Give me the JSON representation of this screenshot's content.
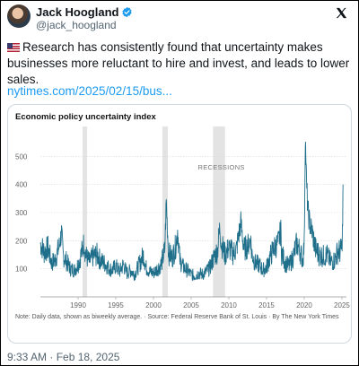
{
  "tweet": {
    "author_name": "Jack Hoogland",
    "author_handle": "@jack_hoogland",
    "text": "Research has consistently found that uncertainty makes businesses more reluctant to hire and invest, and leads to lower sales.",
    "link_text": "nytimes.com/2025/02/15/bus...",
    "timestamp": "9:33 AM · Feb 18, 2025",
    "flag_icon": "us-flag-icon",
    "brand_icon": "x-logo-icon",
    "verified_icon": "verified-badge-icon"
  },
  "chart_data": {
    "type": "line",
    "title": "Economic policy uncertainty index",
    "annotation": "RECESSIONS",
    "note": "Note: Daily data, shown as biweekly average. · Source: Federal Reserve Bank of St. Louis · By The New York Times",
    "xlabel": "",
    "ylabel": "",
    "xlim": [
      1985,
      2025.6
    ],
    "ylim": [
      0,
      600
    ],
    "x_ticks": [
      "1990",
      "1995",
      "2000",
      "2005",
      "2010",
      "2015",
      "2020",
      "2025"
    ],
    "y_ticks": [
      "100",
      "200",
      "300",
      "400",
      "500"
    ],
    "grid": true,
    "line_color": "#1f6f8b",
    "recessions": [
      [
        1990.6,
        1991.2
      ],
      [
        2001.2,
        2001.9
      ],
      [
        2007.9,
        2009.5
      ]
    ],
    "series": [
      {
        "x": [
          1985,
          1985.5,
          1986,
          1986.5,
          1987,
          1987.5,
          1987.8,
          1988,
          1988.5,
          1989,
          1989.5,
          1990,
          1990.5,
          1990.8,
          1991,
          1991.5,
          1992,
          1992.5,
          1993,
          1993.5,
          1994,
          1994.5,
          1995,
          1995.5,
          1996,
          1996.5,
          1997,
          1997.5,
          1998,
          1998.7,
          1999,
          1999.5,
          2000,
          2000.5,
          2001,
          2001.5,
          2001.7,
          2002,
          2002.5,
          2003,
          2003.2,
          2003.5,
          2004,
          2004.5,
          2005,
          2005.5,
          2006,
          2006.5,
          2007,
          2007.5,
          2008,
          2008.5,
          2008.8,
          2009,
          2009.5,
          2010,
          2010.5,
          2011,
          2011.6,
          2012,
          2012.5,
          2012.9,
          2013,
          2013.5,
          2014,
          2014.5,
          2015,
          2015.5,
          2016,
          2016.5,
          2016.9,
          2017,
          2017.5,
          2018,
          2018.5,
          2019,
          2019.5,
          2019.8,
          2020,
          2020.15,
          2020.3,
          2020.5,
          2020.8,
          2021,
          2021.5,
          2022,
          2022.5,
          2023,
          2023.5,
          2024,
          2024.5,
          2024.8,
          2025,
          2025.1,
          2025.15
        ],
        "y": [
          190,
          160,
          175,
          120,
          135,
          180,
          230,
          150,
          125,
          100,
          95,
          115,
          160,
          195,
          150,
          125,
          145,
          150,
          130,
          120,
          105,
          95,
          110,
          90,
          115,
          85,
          95,
          80,
          110,
          150,
          105,
          90,
          85,
          100,
          115,
          165,
          340,
          155,
          140,
          185,
          240,
          130,
          105,
          95,
          80,
          75,
          85,
          80,
          90,
          105,
          140,
          165,
          250,
          190,
          150,
          175,
          155,
          170,
          265,
          170,
          180,
          210,
          160,
          120,
          115,
          95,
          105,
          145,
          175,
          190,
          235,
          155,
          120,
          110,
          140,
          190,
          160,
          130,
          185,
          580,
          400,
          305,
          250,
          240,
          170,
          150,
          145,
          150,
          125,
          130,
          165,
          160,
          180,
          260,
          400
        ]
      }
    ]
  }
}
